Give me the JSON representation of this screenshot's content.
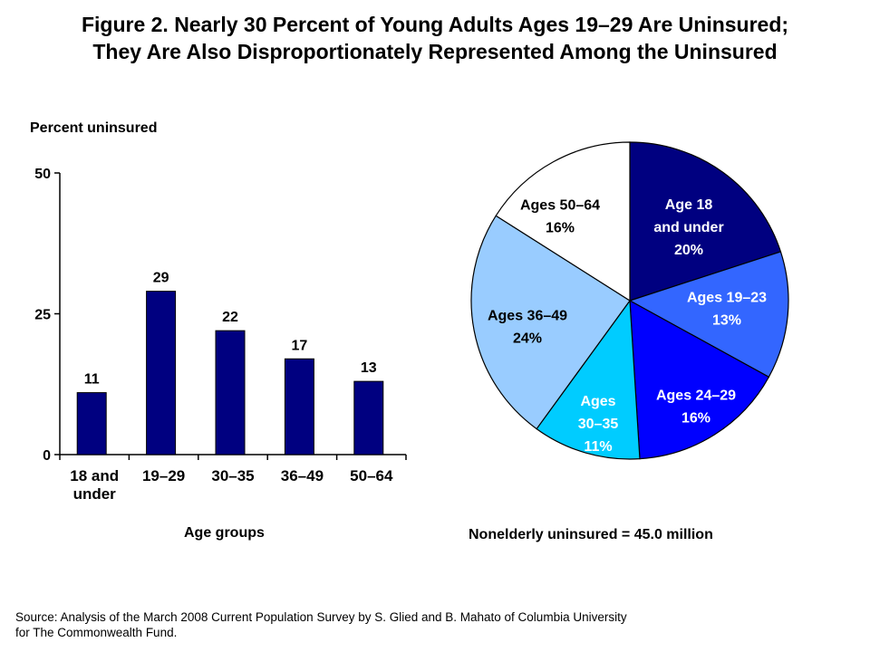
{
  "title_line1": "Figure 2. Nearly 30 Percent of Young Adults Ages 19–29 Are Uninsured;",
  "title_line2": "They Are Also Disproportionately Represented Among the Uninsured",
  "source_line1": "Source: Analysis of the March 2008 Current Population Survey by S. Glied and B. Mahato of Columbia University",
  "source_line2": "for The Commonwealth Fund.",
  "colors": {
    "bar": "#000080"
  },
  "chart_data": [
    {
      "type": "bar",
      "ylabel": "Percent uninsured",
      "xlabel": "Age groups",
      "ylim": [
        0,
        50
      ],
      "yticks": [
        "0",
        "25",
        "50"
      ],
      "categories": [
        [
          "18 and",
          "under"
        ],
        [
          "19–29"
        ],
        [
          "30–35"
        ],
        [
          "36–49"
        ],
        [
          "50–64"
        ]
      ],
      "values": [
        11,
        29,
        22,
        17,
        13
      ],
      "value_labels": [
        "11",
        "29",
        "22",
        "17",
        "13"
      ],
      "grid": false
    },
    {
      "type": "pie",
      "title": "Nonelderly uninsured = 45.0 million",
      "slices": [
        {
          "lines": [
            "Age 18",
            "and under",
            "20%"
          ],
          "value": 20,
          "color": "#000080",
          "text_color": "#ffffff"
        },
        {
          "lines": [
            "Ages 19–23",
            "13%"
          ],
          "value": 13,
          "color": "#3366ff",
          "text_color": "#ffffff"
        },
        {
          "lines": [
            "Ages 24–29",
            "16%"
          ],
          "value": 16,
          "color": "#0000ff",
          "text_color": "#ffffff"
        },
        {
          "lines": [
            "Ages",
            "30–35",
            "11%"
          ],
          "value": 11,
          "color": "#00ccff",
          "text_color": "#ffffff"
        },
        {
          "lines": [
            "Ages 36–49",
            "24%"
          ],
          "value": 24,
          "color": "#99ccff",
          "text_color": "#000000"
        },
        {
          "lines": [
            "Ages 50–64",
            "16%"
          ],
          "value": 16,
          "color": "#ffffff",
          "text_color": "#000000"
        }
      ]
    }
  ]
}
